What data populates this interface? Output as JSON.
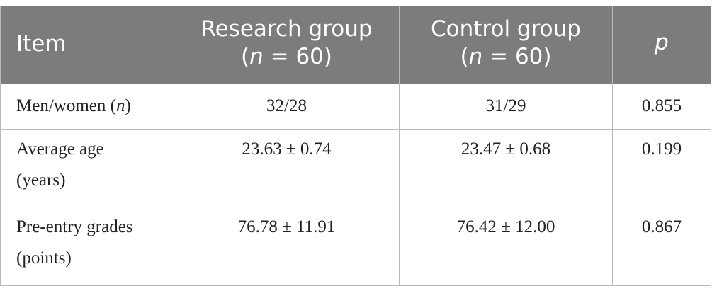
{
  "table": {
    "headers": [
      {
        "line1": "Item",
        "line2": ""
      },
      {
        "line1": "Research group",
        "line2_pre": "(",
        "line2_var": "n",
        "line2_post": " = 60)"
      },
      {
        "line1": "Control group",
        "line2_pre": "(",
        "line2_var": "n",
        "line2_post": " = 60)"
      },
      {
        "line1": "p",
        "line2": ""
      }
    ],
    "rows": [
      {
        "item_pre": "Men/women (",
        "item_var": "n",
        "item_post": ")",
        "research": "32/28",
        "control": "31/29",
        "p": "0.855"
      },
      {
        "item_line1": "Average age",
        "item_line2": "(years)",
        "research": "23.63 ± 0.74",
        "control": "23.47 ± 0.68",
        "p": "0.199"
      },
      {
        "item_line1": "Pre-entry grades",
        "item_line2": "(points)",
        "research": "76.78 ± 11.91",
        "control": "76.42 ± 12.00",
        "p": "0.867"
      }
    ]
  },
  "colors": {
    "header_background": "#7b7c7b",
    "header_text": "#ffffff",
    "border": "#b9b9b9",
    "body_text": "#222222"
  }
}
